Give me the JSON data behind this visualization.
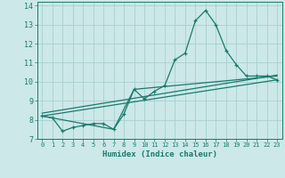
{
  "xlabel": "Humidex (Indice chaleur)",
  "bg_color": "#cce8e8",
  "line_color": "#1a7a6e",
  "grid_color": "#aacece",
  "xlim": [
    -0.5,
    23.5
  ],
  "ylim": [
    7,
    14.2
  ],
  "xticks": [
    0,
    1,
    2,
    3,
    4,
    5,
    6,
    7,
    8,
    9,
    10,
    11,
    12,
    13,
    14,
    15,
    16,
    17,
    18,
    19,
    20,
    21,
    22,
    23
  ],
  "yticks": [
    7,
    8,
    9,
    10,
    11,
    12,
    13,
    14
  ],
  "series1_x": [
    0,
    1,
    2,
    3,
    4,
    5,
    6,
    7,
    8,
    9,
    10,
    11,
    12,
    13,
    14,
    15,
    16,
    17,
    18,
    19,
    20,
    21,
    22,
    23
  ],
  "series1_y": [
    8.2,
    8.1,
    7.4,
    7.6,
    7.7,
    7.8,
    7.8,
    7.5,
    8.3,
    9.6,
    9.1,
    9.5,
    9.8,
    11.15,
    11.5,
    13.2,
    13.75,
    13.0,
    11.65,
    10.9,
    10.3,
    10.3,
    10.3,
    10.1
  ],
  "series2_x": [
    0,
    23
  ],
  "series2_y": [
    8.2,
    10.1
  ],
  "series3_x": [
    0,
    7,
    9,
    23
  ],
  "series3_y": [
    8.2,
    7.5,
    9.6,
    10.3
  ],
  "series4_x": [
    0,
    23
  ],
  "series4_y": [
    8.35,
    10.35
  ]
}
